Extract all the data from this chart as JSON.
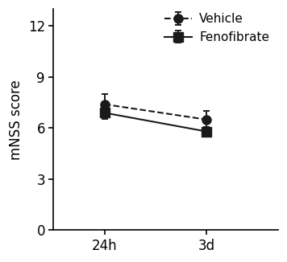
{
  "x_labels": [
    "24h",
    "3d"
  ],
  "x_positions": [
    1,
    2
  ],
  "vehicle_means": [
    7.4,
    6.5
  ],
  "vehicle_errors": [
    0.6,
    0.5
  ],
  "fenofibrate_means": [
    6.9,
    5.8
  ],
  "fenofibrate_errors": [
    0.35,
    0.28
  ],
  "ylabel": "mNSS score",
  "xlabel": "",
  "ylim": [
    0,
    13
  ],
  "yticks": [
    0,
    3,
    6,
    9,
    12
  ],
  "legend_labels": [
    "Vehicle",
    "Fenofibrate"
  ],
  "color": "#1a1a1a",
  "background_color": "#ffffff",
  "marker_size": 8,
  "line_width": 1.5,
  "capsize": 3,
  "font_size": 12
}
